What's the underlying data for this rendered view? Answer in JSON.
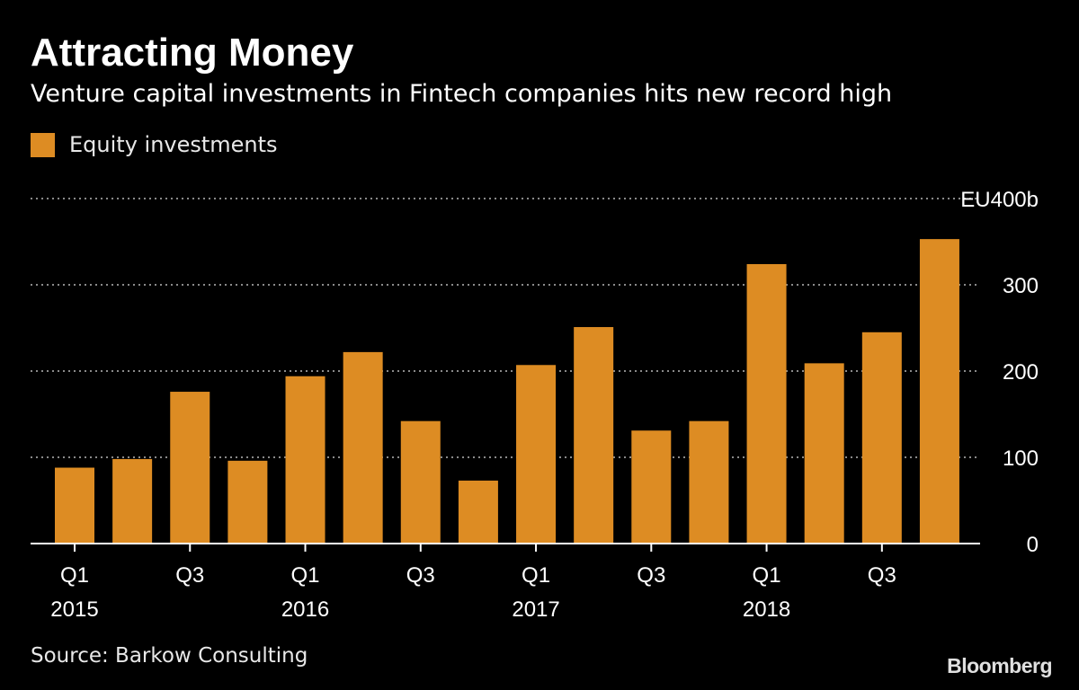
{
  "title": "Attracting Money",
  "subtitle": "Venture capital investments in Fintech companies hits new record high",
  "source": "Source: Barkow Consulting",
  "brand": "Bloomberg",
  "colors": {
    "bar": "#dd8c23",
    "grid": "#8a8a8a",
    "background": "#000000"
  },
  "chart_data": {
    "type": "bar",
    "title": "Attracting Money",
    "subtitle": "Venture capital investments in Fintech companies hits new record high",
    "categories": [
      "Q1 2015",
      "Q2 2015",
      "Q3 2015",
      "Q4 2015",
      "Q1 2016",
      "Q2 2016",
      "Q3 2016",
      "Q4 2016",
      "Q1 2017",
      "Q2 2017",
      "Q3 2017",
      "Q4 2017",
      "Q1 2018",
      "Q2 2018",
      "Q3 2018",
      "Q4 2018"
    ],
    "x_tick_labels": [
      {
        "index": 0,
        "quarter": "Q1",
        "year": "2015"
      },
      {
        "index": 2,
        "quarter": "Q3",
        "year": ""
      },
      {
        "index": 4,
        "quarter": "Q1",
        "year": "2016"
      },
      {
        "index": 6,
        "quarter": "Q3",
        "year": ""
      },
      {
        "index": 8,
        "quarter": "Q1",
        "year": "2017"
      },
      {
        "index": 10,
        "quarter": "Q3",
        "year": ""
      },
      {
        "index": 12,
        "quarter": "Q1",
        "year": "2018"
      },
      {
        "index": 14,
        "quarter": "Q3",
        "year": ""
      }
    ],
    "series": [
      {
        "name": "Equity investments",
        "values": [
          88,
          98,
          176,
          96,
          194,
          222,
          142,
          73,
          207,
          251,
          131,
          142,
          324,
          209,
          245,
          353
        ]
      }
    ],
    "y_ticks": [
      0,
      100,
      200,
      300,
      400
    ],
    "y_tick_labels": [
      "0",
      "100",
      "200",
      "300",
      "EU400b"
    ],
    "ylim": [
      0,
      400
    ],
    "xlabel": "",
    "ylabel": "",
    "grid": true,
    "legend_position": "top-left",
    "y_axis_position": "right"
  }
}
